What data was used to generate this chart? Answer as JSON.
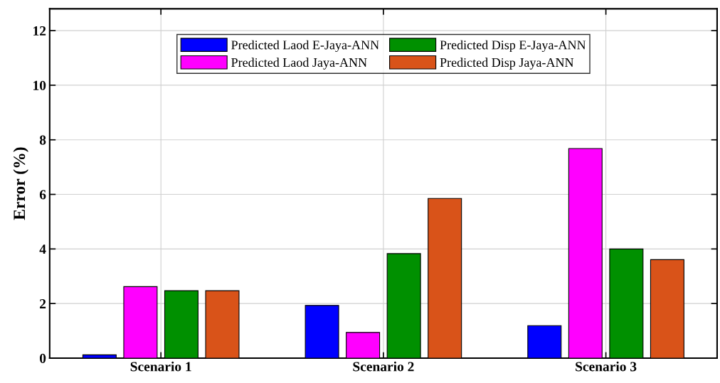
{
  "chart_data": {
    "type": "bar",
    "ylabel": "Error (%)",
    "categories": [
      "Scenario 1",
      "Scenario 2",
      "Scenario 3"
    ],
    "series": [
      {
        "name": "Predicted Laod E-Jaya-ANN",
        "color": "#0000ff",
        "values": [
          0.12,
          1.93,
          1.19
        ]
      },
      {
        "name": "Predicted Laod Jaya-ANN",
        "color": "#ff00ff",
        "values": [
          2.62,
          0.94,
          7.68
        ]
      },
      {
        "name": "Predicted Disp E-Jaya-ANN",
        "color": "#009000",
        "values": [
          2.47,
          3.83,
          4.0
        ]
      },
      {
        "name": "Predicted Disp Jaya-ANN",
        "color": "#d95319",
        "values": [
          2.47,
          5.85,
          3.61
        ]
      }
    ],
    "ylim": [
      0,
      12.8
    ],
    "yticks": [
      0,
      2,
      4,
      6,
      8,
      10,
      12
    ],
    "grid": true,
    "legend": "top"
  }
}
